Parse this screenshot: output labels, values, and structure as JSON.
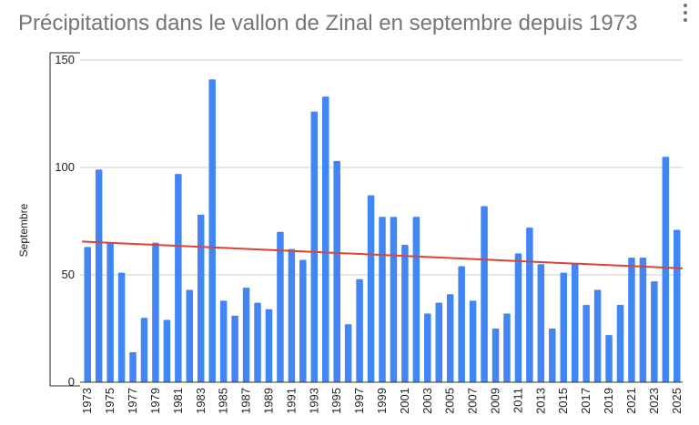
{
  "chart_data": {
    "type": "bar",
    "title": "Précipitations dans le vallon de Zinal en septembre depuis 1973",
    "xlabel": "",
    "ylabel": "Septembre",
    "ylim": [
      0,
      150
    ],
    "yticks": [
      0,
      50,
      100,
      150
    ],
    "grid": true,
    "legend": "none",
    "bar_color": "#4285f4",
    "trendline_color": "#db4437",
    "categories": [
      "1973",
      "1974",
      "1975",
      "1976",
      "1977",
      "1978",
      "1979",
      "1980",
      "1981",
      "1982",
      "1983",
      "1984",
      "1985",
      "1986",
      "1987",
      "1988",
      "1989",
      "1990",
      "1991",
      "1992",
      "1993",
      "1994",
      "1995",
      "1996",
      "1997",
      "1998",
      "1999",
      "2000",
      "2001",
      "2002",
      "2003",
      "2004",
      "2005",
      "2006",
      "2007",
      "2008",
      "2009",
      "2010",
      "2011",
      "2012",
      "2013",
      "2014",
      "2015",
      "2016",
      "2017",
      "2018",
      "2019",
      "2020",
      "2021",
      "2022",
      "2023",
      "2024",
      "2025"
    ],
    "x_tick_labels": [
      "1973",
      "1975",
      "1977",
      "1979",
      "1981",
      "1983",
      "1985",
      "1987",
      "1989",
      "1991",
      "1993",
      "1995",
      "1997",
      "1999",
      "2001",
      "2003",
      "2005",
      "2007",
      "2009",
      "2011",
      "2013",
      "2015",
      "2017",
      "2019",
      "2021",
      "2023",
      "2025"
    ],
    "values": [
      63,
      99,
      65,
      51,
      14,
      30,
      65,
      29,
      97,
      43,
      78,
      141,
      38,
      31,
      44,
      37,
      34,
      70,
      62,
      57,
      126,
      133,
      103,
      27,
      48,
      87,
      77,
      77,
      64,
      77,
      32,
      37,
      41,
      54,
      38,
      82,
      25,
      32,
      60,
      72,
      55,
      25,
      51,
      55,
      36,
      43,
      22,
      36,
      58,
      58,
      47,
      105,
      71
    ],
    "trendline": {
      "type": "linear",
      "start": 65.5,
      "end": 53.0
    }
  }
}
